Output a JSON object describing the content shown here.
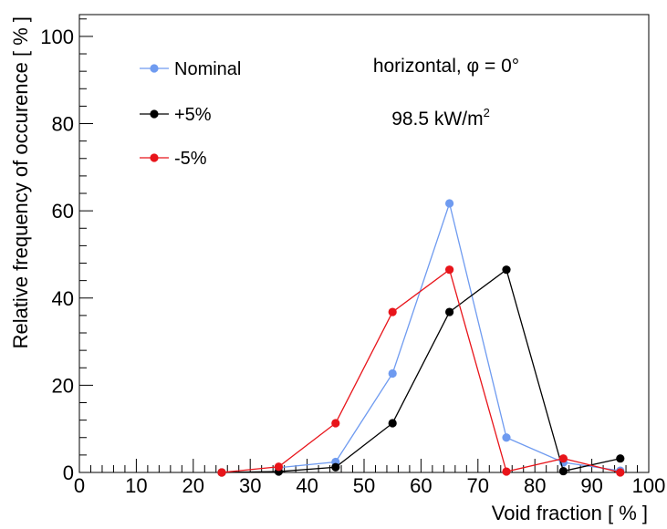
{
  "chart_data": {
    "type": "line",
    "xlabel": "Void fraction [ % ]",
    "ylabel": "Relative frequency of occurence [ % ]",
    "xlim": [
      0,
      100
    ],
    "ylim": [
      0,
      105
    ],
    "x_ticks": [
      0,
      10,
      20,
      30,
      40,
      50,
      60,
      70,
      80,
      90,
      100
    ],
    "y_ticks": [
      0,
      20,
      40,
      60,
      80,
      100
    ],
    "grid": false,
    "legend_position": "top-left",
    "annotations": [
      "horizontal, φ = 0°",
      "98.5 kW/m",
      "2"
    ],
    "series": [
      {
        "name": "Nominal",
        "color": "#6f9bf0",
        "x": [
          35,
          45,
          55,
          65,
          75,
          85,
          95
        ],
        "y": [
          1.1,
          2.4,
          22.7,
          61.7,
          8.0,
          2.3,
          0.4
        ]
      },
      {
        "name": "+5%",
        "color": "#000000",
        "x": [
          25,
          35,
          45,
          55,
          65,
          75,
          85,
          95
        ],
        "y": [
          0.0,
          0.2,
          1.2,
          11.3,
          36.8,
          46.5,
          0.3,
          3.2
        ]
      },
      {
        "name": "-5%",
        "color": "#e8141a",
        "x": [
          25,
          35,
          45,
          55,
          65,
          75,
          85,
          95
        ],
        "y": [
          0.0,
          1.3,
          11.3,
          36.8,
          46.5,
          0.2,
          3.2,
          0.0
        ]
      }
    ]
  }
}
